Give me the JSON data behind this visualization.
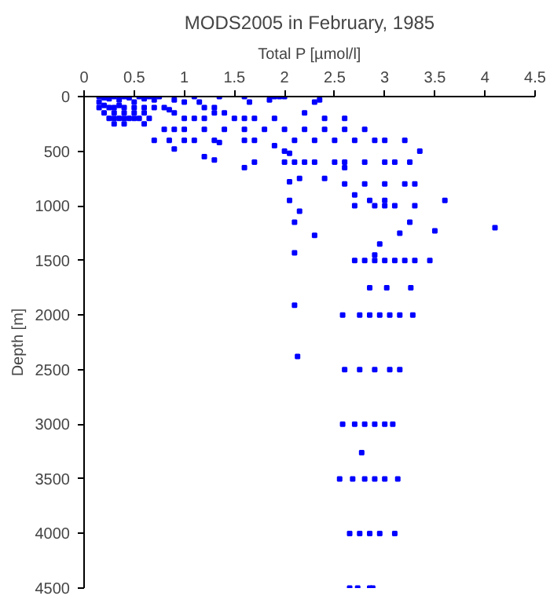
{
  "chart_data": {
    "type": "scatter",
    "title": "MODS2005 in February, 1985",
    "xlabel": "Total P [µmol/l]",
    "ylabel": "Depth [m]",
    "xlim": [
      0,
      4.5
    ],
    "xticks": [
      0,
      0.5,
      1,
      1.5,
      2,
      2.5,
      3,
      3.5,
      4,
      4.5
    ],
    "ylim": [
      4500,
      0
    ],
    "yticks": [
      0,
      500,
      1000,
      1500,
      2000,
      2500,
      3000,
      3500,
      4000,
      4500
    ],
    "grid": false,
    "marker": "square",
    "series": [
      {
        "color": "#0000ff",
        "x": [
          0.15,
          0.2,
          0.25,
          0.3,
          0.35,
          0.4,
          0.45,
          0.5,
          0.55,
          0.6,
          0.65,
          0.7,
          0.75,
          0.15,
          0.2,
          0.25,
          0.3,
          0.35,
          0.4,
          0.5,
          0.6,
          0.7,
          0.8,
          0.85,
          0.15,
          0.2,
          0.3,
          0.4,
          0.5,
          0.6,
          0.25,
          0.3,
          0.35,
          0.4,
          0.45,
          0.5,
          0.55,
          0.3,
          0.4,
          0.6,
          0.65,
          1.1,
          1.15,
          1.35,
          1.6,
          1.65,
          1.85,
          1.9,
          1.95,
          2.0,
          2.3,
          2.35,
          0.9,
          1.0,
          1.2,
          1.3,
          0.9,
          1.0,
          1.1,
          1.2,
          1.3,
          1.4,
          1.5,
          1.6,
          1.7,
          1.9,
          2.2,
          2.4,
          2.6,
          0.8,
          0.9,
          1.0,
          1.2,
          1.4,
          1.6,
          1.8,
          2.0,
          2.2,
          2.4,
          2.6,
          2.8,
          0.7,
          0.85,
          1.0,
          1.1,
          1.3,
          1.35,
          1.6,
          1.7,
          1.9,
          2.1,
          2.3,
          2.5,
          2.7,
          2.9,
          3.0,
          3.2,
          0.9,
          1.2,
          1.3,
          1.6,
          1.7,
          2.0,
          2.05,
          2.0,
          2.1,
          2.2,
          2.3,
          2.5,
          2.6,
          2.8,
          3.0,
          3.1,
          3.25,
          3.35,
          2.6,
          2.05,
          2.15,
          2.4,
          2.6,
          2.8,
          3.0,
          3.2,
          3.3,
          2.7,
          2.85,
          3.0,
          2.7,
          2.9,
          3.0,
          3.1,
          3.3,
          3.6,
          2.05,
          2.15,
          2.1,
          2.3,
          3.15,
          3.25,
          3.5,
          4.1,
          2.95,
          2.9,
          2.1,
          2.7,
          2.8,
          2.9,
          3.0,
          3.1,
          3.2,
          3.3,
          3.45,
          2.85,
          3.02,
          3.26,
          2.1,
          2.13,
          2.58,
          2.75,
          2.85,
          2.95,
          3.05,
          3.15,
          3.28,
          2.6,
          2.75,
          2.9,
          3.05,
          3.15,
          2.58,
          2.7,
          2.8,
          2.9,
          3.0,
          3.08,
          2.77,
          2.55,
          2.68,
          2.8,
          2.9,
          3.0,
          3.13,
          2.65,
          2.75,
          2.85,
          2.95,
          3.1,
          2.65,
          2.73,
          2.85,
          2.88
        ],
        "values": [
          0,
          10,
          20,
          0,
          30,
          0,
          10,
          50,
          0,
          20,
          0,
          30,
          0,
          50,
          80,
          100,
          100,
          80,
          100,
          100,
          100,
          100,
          100,
          120,
          100,
          150,
          150,
          150,
          150,
          150,
          200,
          200,
          200,
          200,
          200,
          200,
          200,
          250,
          250,
          250,
          200,
          0,
          50,
          0,
          0,
          50,
          30,
          0,
          0,
          0,
          50,
          30,
          30,
          50,
          100,
          100,
          150,
          200,
          200,
          200,
          150,
          150,
          200,
          200,
          200,
          200,
          150,
          200,
          200,
          300,
          300,
          300,
          300,
          300,
          300,
          300,
          300,
          300,
          300,
          300,
          300,
          400,
          400,
          400,
          400,
          400,
          420,
          400,
          400,
          450,
          400,
          400,
          400,
          400,
          400,
          400,
          400,
          480,
          550,
          580,
          650,
          600,
          500,
          520,
          600,
          600,
          600,
          600,
          600,
          600,
          600,
          600,
          600,
          600,
          500,
          650,
          780,
          750,
          750,
          800,
          800,
          800,
          800,
          800,
          900,
          950,
          950,
          1000,
          1000,
          1000,
          1000,
          1000,
          950,
          950,
          1050,
          1150,
          1270,
          1250,
          1150,
          1230,
          1200,
          1350,
          1450,
          1430,
          1500,
          1500,
          1500,
          1500,
          1500,
          1500,
          1500,
          1500,
          1750,
          1750,
          1750,
          1910,
          2380,
          2000,
          2000,
          2000,
          2000,
          2000,
          2000,
          2000,
          2500,
          2500,
          2500,
          2500,
          2500,
          3000,
          3000,
          3000,
          3000,
          3000,
          3000,
          3260,
          3500,
          3500,
          3500,
          3500,
          3500,
          3500,
          4000,
          4000,
          4000,
          4000,
          4000,
          4500,
          4500,
          4500,
          4500
        ]
      }
    ]
  }
}
